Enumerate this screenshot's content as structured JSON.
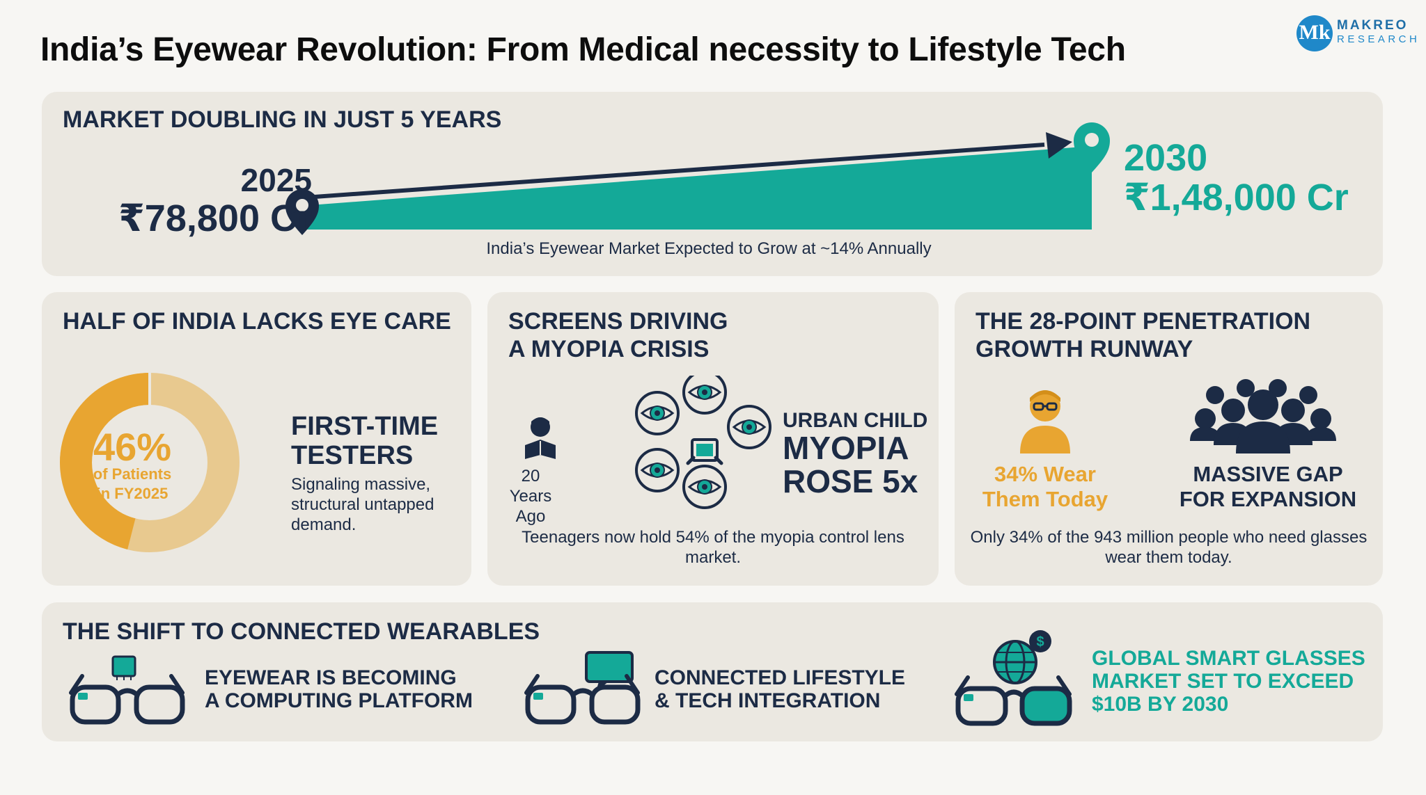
{
  "title": "India’s Eyewear Revolution: From Medical necessity to Lifestyle Tech",
  "logo": {
    "monogram": "Mk",
    "name": "MAKREO",
    "sub": "RESEARCH"
  },
  "colors": {
    "navy": "#1c2b45",
    "teal": "#14a998",
    "amber": "#e8a531",
    "panel": "#ebe8e1"
  },
  "market": {
    "heading": "MARKET DOUBLING IN JUST 5 YEARS",
    "start_year": "2025",
    "start_value": "₹78,800 Cr",
    "end_year": "2030",
    "end_value": "₹1,48,000 Cr",
    "caption": "India’s Eyewear Market Expected to Grow at ~14% Annually"
  },
  "eye_care": {
    "heading": "HALF OF INDIA LACKS EYE CARE",
    "percent": "46%",
    "percent_value": 46,
    "percent_sub": "of Patients\nin FY2025",
    "highlight": "FIRST-TIME\nTESTERS",
    "body": "Signaling massive, structural untapped demand."
  },
  "myopia": {
    "heading": "SCREENS DRIVING\nA MYOPIA CRISIS",
    "years_ago": "20 Years Ago",
    "urban": "URBAN CHILD",
    "big": "MYOPIA\nROSE 5x",
    "caption": "Teenagers now hold 54% of the myopia control lens market."
  },
  "penetration": {
    "heading": "THE 28-POINT PENETRATION\nGROWTH RUNWAY",
    "wear": "34% Wear\nThem Today",
    "gap": "MASSIVE GAP\nFOR EXPANSION",
    "caption": "Only 34% of the 943 million people who need glasses wear them today."
  },
  "wearables": {
    "heading": "THE SHIFT TO CONNECTED WEARABLES",
    "items": [
      {
        "label": "EYEWEAR IS BECOMING\nA COMPUTING PLATFORM",
        "icon": "chip-glasses-icon"
      },
      {
        "label": "CONNECTED LIFESTYLE\n& TECH INTEGRATION",
        "icon": "chat-glasses-icon"
      },
      {
        "label": "GLOBAL SMART GLASSES\nMARKET SET TO EXCEED\n$10B BY 2030",
        "icon": "globe-glasses-icon"
      }
    ]
  }
}
